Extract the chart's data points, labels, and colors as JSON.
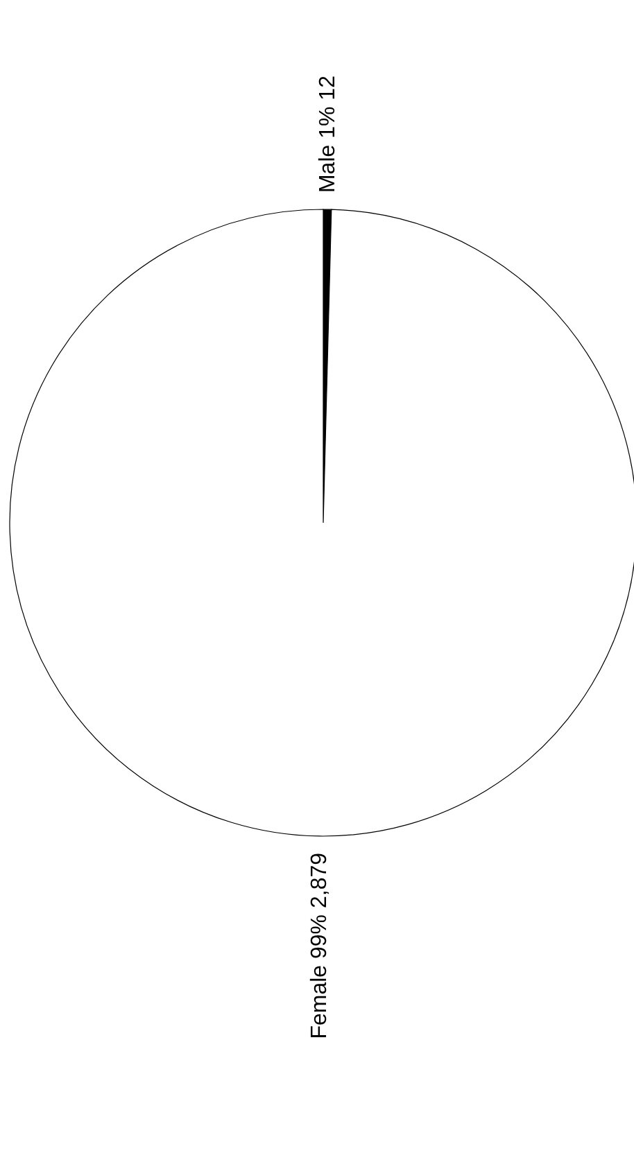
{
  "chart_data": {
    "type": "pie",
    "categories": [
      "Male",
      "Female"
    ],
    "values": [
      12,
      2879
    ],
    "colors": [
      "#000000",
      "#ffffff"
    ],
    "value_labels": [
      "1% 12",
      "99% 2,879"
    ]
  }
}
